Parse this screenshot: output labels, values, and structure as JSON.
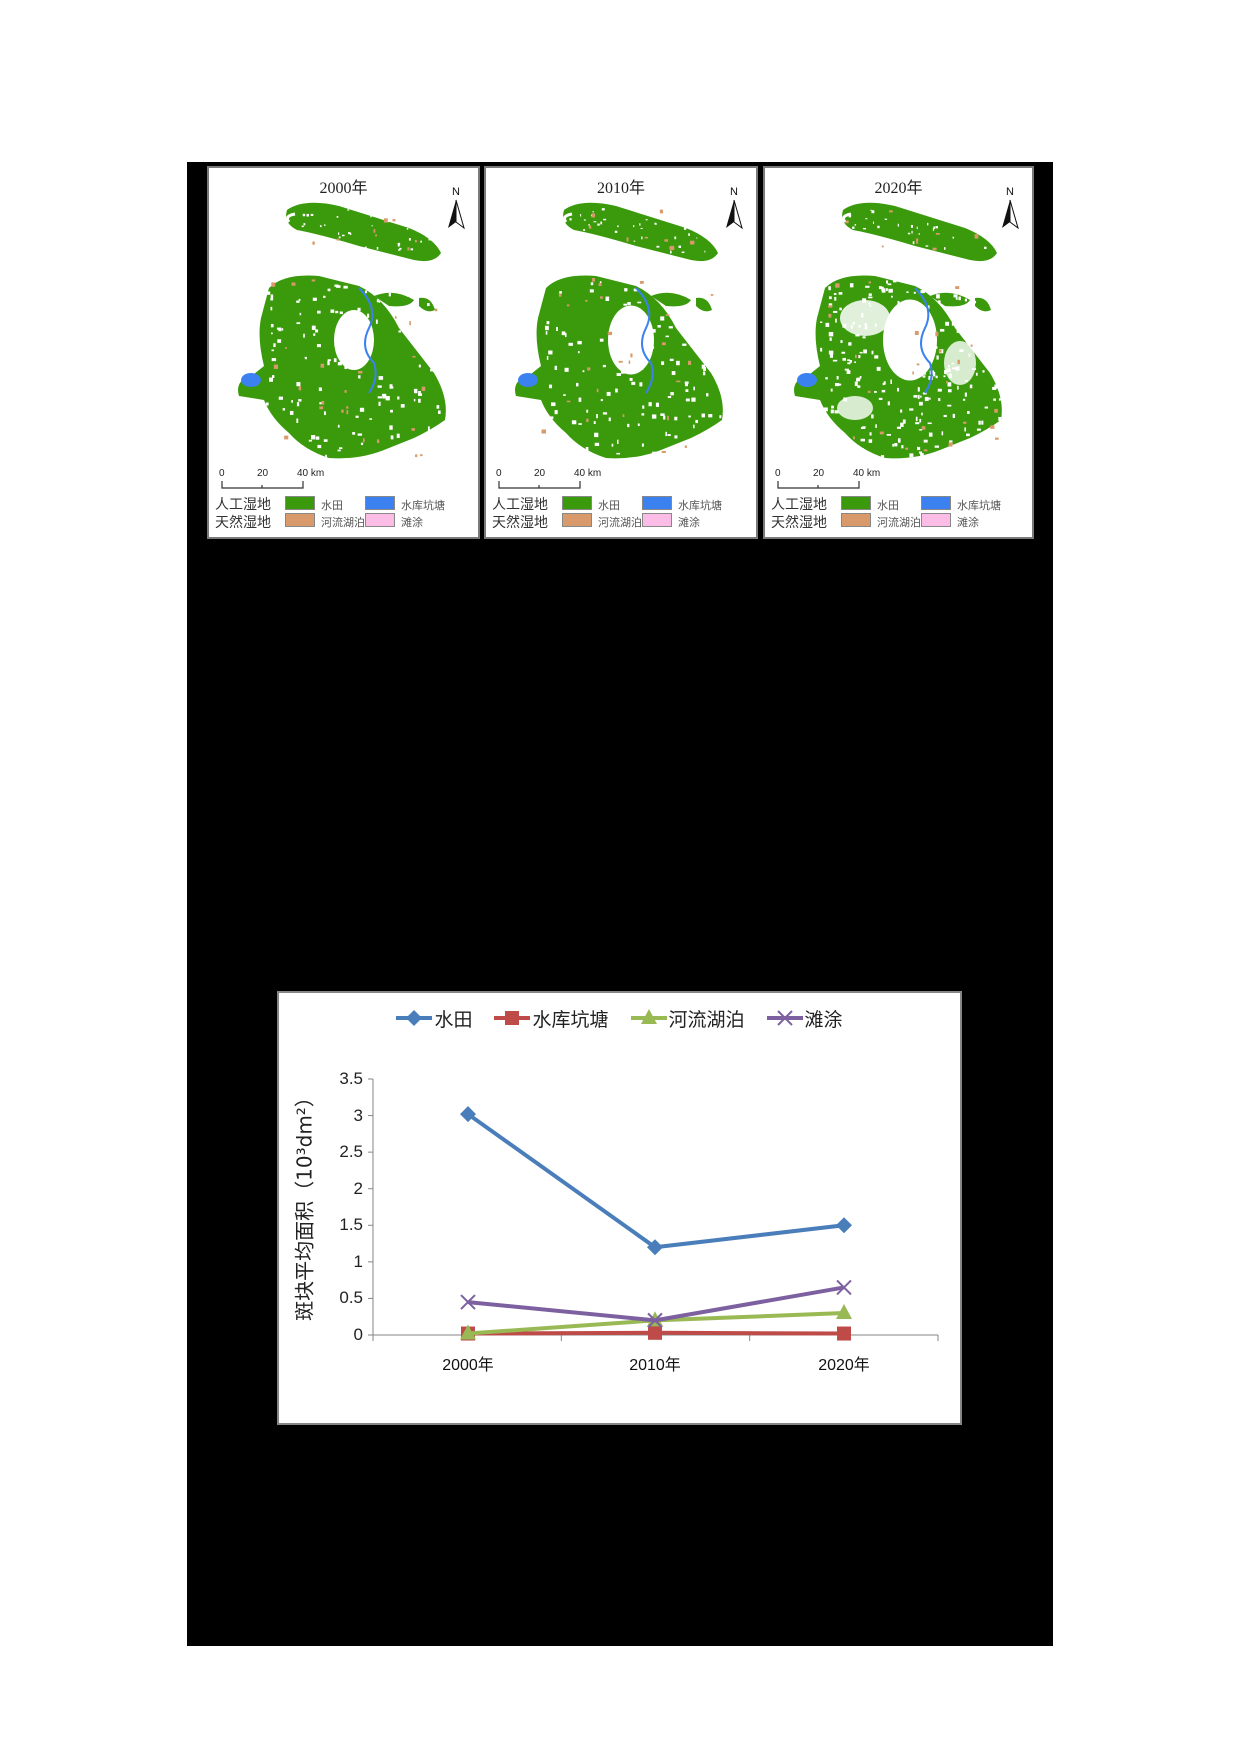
{
  "maps": {
    "panels": [
      {
        "title": "2000年",
        "scale_ticks": [
          "0",
          "20",
          "40 km"
        ]
      },
      {
        "title": "2010年",
        "scale_ticks": [
          "0",
          "20",
          "40 km"
        ]
      },
      {
        "title": "2020年",
        "scale_ticks": [
          "0",
          "20",
          "40 km"
        ]
      }
    ],
    "north_label": "N",
    "legend": {
      "artificial_label": "人工湿地",
      "natural_label": "天然湿地",
      "items": [
        {
          "label": "水田",
          "color": "#3a9a0c"
        },
        {
          "label": "水库坑塘",
          "color": "#3b82f0"
        },
        {
          "label": "河流湖泊",
          "color": "#d99a6b"
        },
        {
          "label": "滩涂",
          "color": "#fbbde6"
        }
      ]
    }
  },
  "chart_data": {
    "type": "line",
    "title": "",
    "categories": [
      "2000年",
      "2010年",
      "2020年"
    ],
    "xlabel": "",
    "ylabel": "斑块平均面积（10³dm²）",
    "ylim": [
      0,
      3.5
    ],
    "yticks": [
      "0",
      "0.5",
      "1",
      "1.5",
      "2",
      "2.5",
      "3",
      "3.5"
    ],
    "grid": false,
    "legend_position": "top",
    "series": [
      {
        "name": "水田",
        "color": "#4a7ebb",
        "marker": "diamond",
        "values": [
          3.02,
          1.2,
          1.5
        ]
      },
      {
        "name": "水库坑塘",
        "color": "#be4b48",
        "marker": "square",
        "values": [
          0.02,
          0.03,
          0.02
        ]
      },
      {
        "name": "河流湖泊",
        "color": "#98b954",
        "marker": "triangle",
        "values": [
          0.02,
          0.2,
          0.3
        ]
      },
      {
        "name": "滩涂",
        "color": "#7d60a0",
        "marker": "x",
        "values": [
          0.45,
          0.2,
          0.65
        ]
      }
    ]
  }
}
